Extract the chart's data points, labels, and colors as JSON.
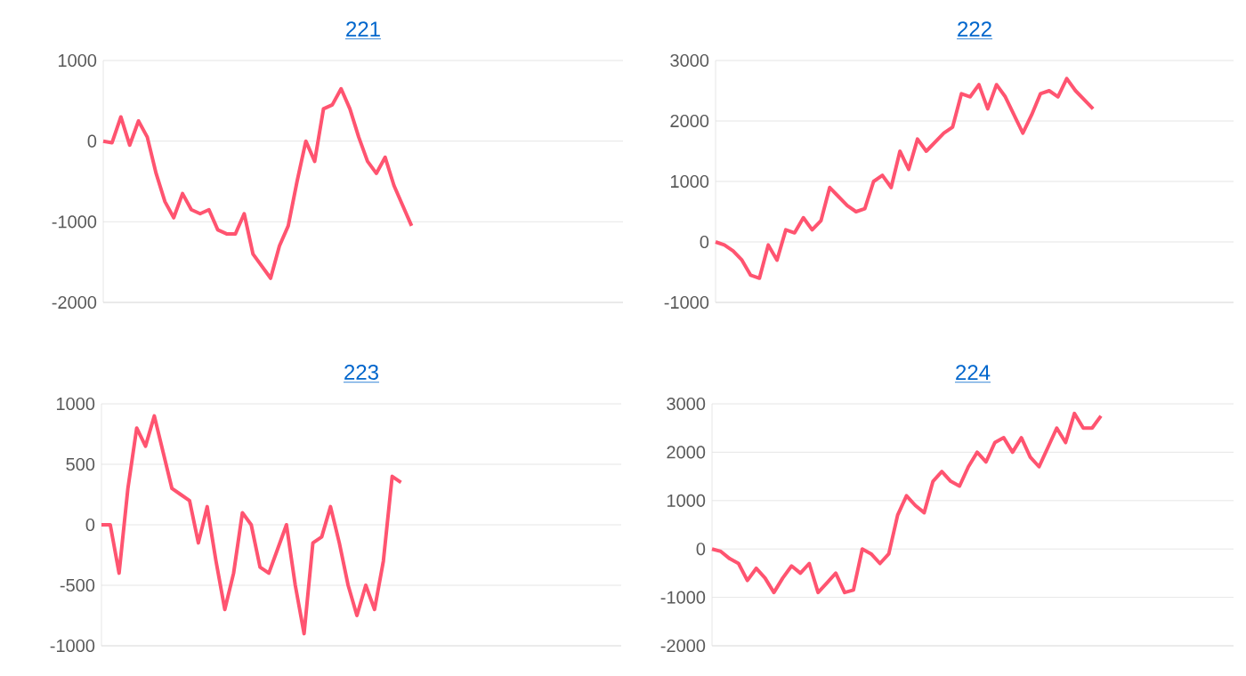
{
  "chart_data": [
    {
      "type": "line",
      "title": "221",
      "categories": [
        null,
        null,
        null,
        null,
        null,
        null,
        null,
        null,
        null,
        null,
        null,
        null,
        null,
        null,
        null,
        null,
        null,
        null,
        null,
        null,
        null,
        null,
        null,
        null,
        null,
        null,
        null,
        null,
        null,
        null,
        null,
        null,
        null,
        null,
        null,
        null,
        null,
        null,
        null,
        null,
        null,
        null,
        null,
        null,
        null,
        null,
        null,
        null,
        null,
        null,
        null,
        null,
        null,
        null,
        null,
        null,
        null,
        null,
        null,
        null
      ],
      "series": [
        {
          "color": "#ff5470",
          "values": [
            0,
            -20,
            300,
            -50,
            250,
            50,
            -400,
            -750,
            -950,
            -650,
            -850,
            -900,
            -850,
            -1100,
            -1150,
            -1150,
            -900,
            -1400,
            -1550,
            -1700,
            -1300,
            -1050,
            -500,
            0,
            -250,
            400,
            450,
            650,
            400,
            50,
            -250,
            -400,
            -200,
            -550,
            -800,
            -1050,
            null,
            null,
            null,
            null,
            null,
            null,
            null,
            null,
            null,
            null,
            null,
            null,
            null,
            null,
            null,
            null,
            null,
            null,
            null,
            null,
            null,
            null,
            null,
            null
          ]
        }
      ],
      "ylim": [
        -2000,
        1000
      ],
      "yticks": [
        -2000,
        -1000,
        0,
        1000
      ],
      "grid": "y",
      "tick_labels": "y",
      "marker": "none",
      "line_style": "solid"
    },
    {
      "type": "line",
      "title": "222",
      "categories": [
        null,
        null,
        null,
        null,
        null,
        null,
        null,
        null,
        null,
        null,
        null,
        null,
        null,
        null,
        null,
        null,
        null,
        null,
        null,
        null,
        null,
        null,
        null,
        null,
        null,
        null,
        null,
        null,
        null,
        null,
        null,
        null,
        null,
        null,
        null,
        null,
        null,
        null,
        null,
        null,
        null,
        null,
        null,
        null,
        null,
        null,
        null,
        null,
        null,
        null,
        null,
        null,
        null,
        null,
        null,
        null,
        null,
        null,
        null,
        null
      ],
      "series": [
        {
          "color": "#ff5470",
          "values": [
            0,
            -50,
            -150,
            -300,
            -550,
            -600,
            -50,
            -300,
            200,
            150,
            400,
            200,
            350,
            900,
            750,
            600,
            500,
            550,
            1000,
            1100,
            900,
            1500,
            1200,
            1700,
            1500,
            1650,
            1800,
            1900,
            2450,
            2400,
            2600,
            2200,
            2600,
            2400,
            2100,
            1800,
            2100,
            2450,
            2500,
            2400,
            2700,
            2500,
            2350,
            2200,
            null,
            null,
            null,
            null,
            null,
            null,
            null,
            null,
            null,
            null,
            null,
            null,
            null,
            null,
            null,
            null
          ]
        }
      ],
      "ylim": [
        -1000,
        3000
      ],
      "yticks": [
        -1000,
        0,
        1000,
        2000,
        3000
      ],
      "grid": "y",
      "tick_labels": "y",
      "marker": "none",
      "line_style": "solid"
    },
    {
      "type": "line",
      "title": "223",
      "categories": [
        null,
        null,
        null,
        null,
        null,
        null,
        null,
        null,
        null,
        null,
        null,
        null,
        null,
        null,
        null,
        null,
        null,
        null,
        null,
        null,
        null,
        null,
        null,
        null,
        null,
        null,
        null,
        null,
        null,
        null,
        null,
        null,
        null,
        null,
        null,
        null,
        null,
        null,
        null,
        null,
        null,
        null,
        null,
        null,
        null,
        null,
        null,
        null,
        null,
        null,
        null,
        null,
        null,
        null,
        null,
        null,
        null,
        null,
        null,
        null
      ],
      "series": [
        {
          "color": "#ff5470",
          "values": [
            0,
            0,
            -400,
            300,
            800,
            650,
            900,
            600,
            300,
            250,
            200,
            -150,
            150,
            -300,
            -700,
            -400,
            100,
            0,
            -350,
            -400,
            -200,
            0,
            -500,
            -900,
            -150,
            -100,
            150,
            -150,
            -500,
            -750,
            -500,
            -700,
            -300,
            400,
            350,
            null,
            null,
            null,
            null,
            null,
            null,
            null,
            null,
            null,
            null,
            null,
            null,
            null,
            null,
            null,
            null,
            null,
            null,
            null,
            null,
            null,
            null,
            null,
            null,
            null
          ]
        }
      ],
      "ylim": [
        -1000,
        1000
      ],
      "yticks": [
        -1000,
        -500,
        0,
        500,
        1000
      ],
      "grid": "y",
      "tick_labels": "y",
      "marker": "none",
      "line_style": "solid"
    },
    {
      "type": "line",
      "title": "224",
      "categories": [
        null,
        null,
        null,
        null,
        null,
        null,
        null,
        null,
        null,
        null,
        null,
        null,
        null,
        null,
        null,
        null,
        null,
        null,
        null,
        null,
        null,
        null,
        null,
        null,
        null,
        null,
        null,
        null,
        null,
        null,
        null,
        null,
        null,
        null,
        null,
        null,
        null,
        null,
        null,
        null,
        null,
        null,
        null,
        null,
        null,
        null,
        null,
        null,
        null,
        null,
        null,
        null,
        null,
        null,
        null,
        null,
        null,
        null,
        null,
        null
      ],
      "series": [
        {
          "color": "#ff5470",
          "values": [
            0,
            -50,
            -200,
            -300,
            -650,
            -400,
            -600,
            -900,
            -600,
            -350,
            -500,
            -300,
            -900,
            -700,
            -500,
            -900,
            -850,
            0,
            -100,
            -300,
            -100,
            700,
            1100,
            900,
            750,
            1400,
            1600,
            1400,
            1300,
            1700,
            2000,
            1800,
            2200,
            2300,
            2000,
            2300,
            1900,
            1700,
            2100,
            2500,
            2200,
            2800,
            2500,
            2500,
            2750,
            null,
            null,
            null,
            null,
            null,
            null,
            null,
            null,
            null,
            null,
            null,
            null,
            null,
            null,
            null
          ]
        }
      ],
      "ylim": [
        -2000,
        3000
      ],
      "yticks": [
        -2000,
        -1000,
        0,
        1000,
        2000,
        3000
      ],
      "grid": "y",
      "tick_labels": "y",
      "marker": "none",
      "line_style": "solid"
    }
  ]
}
